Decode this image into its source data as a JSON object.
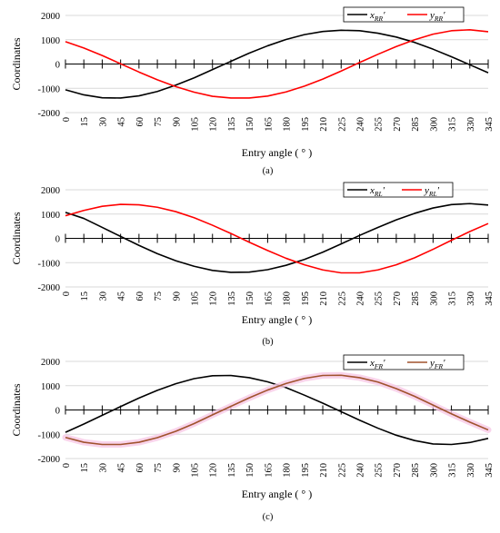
{
  "chart_data": [
    {
      "type": "line",
      "label": "(a)",
      "ylabel": "Coordinates",
      "xlabel": "Entry angle ( ° )",
      "ylim": [
        -2000,
        2000
      ],
      "yticks": [
        2000,
        1000,
        0,
        -1000,
        -2000
      ],
      "x": [
        0,
        15,
        30,
        45,
        60,
        75,
        90,
        105,
        120,
        135,
        150,
        165,
        180,
        195,
        210,
        225,
        240,
        255,
        270,
        285,
        300,
        315,
        330,
        345
      ],
      "grid": "horizontal",
      "legend_position": "top-right",
      "series": [
        {
          "name": "x",
          "sub": "RR",
          "color": "#000000",
          "values": [
            -1060,
            -1270,
            -1390,
            -1400,
            -1310,
            -1130,
            -870,
            -570,
            -230,
            110,
            450,
            750,
            1010,
            1210,
            1340,
            1390,
            1370,
            1270,
            1110,
            890,
            610,
            300,
            -30,
            -360
          ]
        },
        {
          "name": "y",
          "sub": "RR",
          "color": "#ff0000",
          "values": [
            920,
            660,
            350,
            10,
            -330,
            -650,
            -930,
            -1160,
            -1330,
            -1400,
            -1400,
            -1320,
            -1150,
            -910,
            -620,
            -290,
            60,
            400,
            720,
            1000,
            1230,
            1370,
            1410,
            1330
          ]
        }
      ]
    },
    {
      "type": "line",
      "label": "(b)",
      "ylabel": "Coordinates",
      "xlabel": "Entry angle ( ° )",
      "ylim": [
        -2000,
        2000
      ],
      "yticks": [
        2000,
        1000,
        0,
        -1000,
        -2000
      ],
      "x": [
        0,
        15,
        30,
        45,
        60,
        75,
        90,
        105,
        120,
        135,
        150,
        165,
        180,
        195,
        210,
        225,
        240,
        255,
        270,
        285,
        300,
        315,
        330,
        345
      ],
      "grid": "horizontal",
      "legend_position": "top-right",
      "series": [
        {
          "name": "x",
          "sub": "RL",
          "color": "#000000",
          "values": [
            1070,
            820,
            450,
            80,
            -290,
            -630,
            -920,
            -1150,
            -1320,
            -1400,
            -1390,
            -1290,
            -1110,
            -870,
            -570,
            -230,
            120,
            450,
            760,
            1030,
            1250,
            1390,
            1430,
            1370
          ]
        },
        {
          "name": "y",
          "sub": "RL",
          "color": "#ff0000",
          "values": [
            930,
            1150,
            1320,
            1400,
            1380,
            1280,
            1100,
            850,
            540,
            200,
            -160,
            -500,
            -820,
            -1090,
            -1300,
            -1420,
            -1420,
            -1300,
            -1090,
            -800,
            -450,
            -80,
            280,
            610
          ]
        }
      ]
    },
    {
      "type": "line",
      "label": "(c)",
      "ylabel": "Coordinates",
      "xlabel": "Entry angle ( ° )",
      "ylim": [
        -2000,
        2000
      ],
      "yticks": [
        2000,
        1000,
        0,
        -1000,
        -2000
      ],
      "x": [
        0,
        15,
        30,
        45,
        60,
        75,
        90,
        105,
        120,
        135,
        150,
        165,
        180,
        195,
        210,
        225,
        240,
        255,
        270,
        285,
        300,
        315,
        330,
        345
      ],
      "grid": "horizontal",
      "legend_position": "top-right",
      "series": [
        {
          "name": "x",
          "sub": "FR",
          "color": "#000000",
          "values": [
            -920,
            -580,
            -220,
            140,
            490,
            810,
            1080,
            1290,
            1410,
            1420,
            1330,
            1160,
            920,
            610,
            280,
            -70,
            -420,
            -750,
            -1040,
            -1260,
            -1400,
            -1420,
            -1340,
            -1170
          ]
        },
        {
          "name": "y",
          "sub": "FR",
          "color": "#a0522d",
          "values": [
            -1130,
            -1330,
            -1420,
            -1420,
            -1330,
            -1140,
            -880,
            -560,
            -200,
            150,
            500,
            820,
            1090,
            1300,
            1420,
            1430,
            1330,
            1150,
            880,
            560,
            200,
            -160,
            -500,
            -820
          ]
        }
      ]
    }
  ]
}
